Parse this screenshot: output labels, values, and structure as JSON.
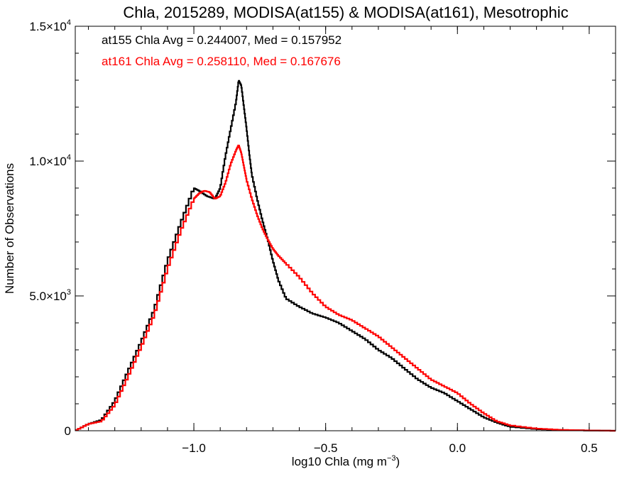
{
  "chart_data": {
    "type": "line",
    "title": "Chla, 2015289, MODISA(at155) & MODISA(at161), Mesotrophic",
    "xlabel": "log10 Chla (mg m",
    "xlabel_sup": "−3",
    "xlabel_tail": ")",
    "ylabel": "Number of Observations",
    "xlim": [
      -1.45,
      0.6
    ],
    "ylim": [
      0,
      15000
    ],
    "x_ticks": [
      {
        "value": -1.0,
        "label": "−1.0"
      },
      {
        "value": -0.5,
        "label": "−0.5"
      },
      {
        "value": 0.0,
        "label": "0.0"
      },
      {
        "value": 0.5,
        "label": "0.5"
      }
    ],
    "y_ticks": [
      {
        "value": 0,
        "label": "0",
        "sup": ""
      },
      {
        "value": 5000,
        "label": "5.0×10",
        "sup": "3"
      },
      {
        "value": 10000,
        "label": "1.0×10",
        "sup": "4"
      },
      {
        "value": 15000,
        "label": "1.5×10",
        "sup": "4"
      }
    ],
    "x_minor_step": 0.1,
    "y_minor_step": 1000,
    "grid": false,
    "annotations": [
      {
        "text": "at155 Chla Avg = 0.244007, Med = 0.157952",
        "color": "#000000"
      },
      {
        "text": "at161 Chla Avg = 0.258110, Med = 0.167676",
        "color": "#ff0000"
      }
    ],
    "series": [
      {
        "color": "#000000",
        "x": [
          -1.45,
          -1.4,
          -1.35,
          -1.3,
          -1.25,
          -1.2,
          -1.15,
          -1.1,
          -1.05,
          -1.0,
          -0.98,
          -0.95,
          -0.92,
          -0.9,
          -0.88,
          -0.86,
          -0.84,
          -0.83,
          -0.82,
          -0.81,
          -0.8,
          -0.79,
          -0.78,
          -0.76,
          -0.74,
          -0.72,
          -0.7,
          -0.68,
          -0.65,
          -0.6,
          -0.55,
          -0.5,
          -0.45,
          -0.4,
          -0.35,
          -0.3,
          -0.25,
          -0.2,
          -0.15,
          -0.1,
          -0.05,
          0.0,
          0.05,
          0.1,
          0.15,
          0.2,
          0.3,
          0.4,
          0.5,
          0.6
        ],
        "y": [
          0,
          250,
          400,
          1100,
          2200,
          3300,
          4500,
          6300,
          7700,
          9000,
          8900,
          8700,
          8600,
          9000,
          10200,
          11200,
          12200,
          13000,
          12800,
          12000,
          11200,
          10300,
          9500,
          8600,
          7800,
          7100,
          6300,
          5600,
          4900,
          4600,
          4350,
          4200,
          4000,
          3700,
          3400,
          3000,
          2700,
          2300,
          1900,
          1600,
          1400,
          1100,
          800,
          500,
          300,
          150,
          60,
          25,
          10,
          0
        ]
      },
      {
        "color": "#ff0000",
        "x": [
          -1.45,
          -1.4,
          -1.35,
          -1.3,
          -1.25,
          -1.2,
          -1.15,
          -1.1,
          -1.05,
          -1.0,
          -0.98,
          -0.96,
          -0.94,
          -0.92,
          -0.9,
          -0.88,
          -0.86,
          -0.84,
          -0.83,
          -0.82,
          -0.81,
          -0.8,
          -0.78,
          -0.76,
          -0.74,
          -0.72,
          -0.7,
          -0.68,
          -0.65,
          -0.6,
          -0.55,
          -0.5,
          -0.45,
          -0.4,
          -0.35,
          -0.3,
          -0.25,
          -0.2,
          -0.15,
          -0.1,
          -0.05,
          0.0,
          0.05,
          0.1,
          0.15,
          0.2,
          0.3,
          0.4,
          0.5,
          0.6
        ],
        "y": [
          0,
          250,
          350,
          950,
          2000,
          3100,
          4300,
          6000,
          7400,
          8600,
          8800,
          8900,
          8850,
          8600,
          8700,
          9200,
          9900,
          10400,
          10600,
          10300,
          9800,
          9300,
          8600,
          8000,
          7500,
          7100,
          6750,
          6500,
          6200,
          5700,
          5100,
          4600,
          4300,
          4100,
          3800,
          3500,
          3100,
          2700,
          2300,
          1900,
          1650,
          1400,
          1000,
          650,
          350,
          200,
          80,
          30,
          10,
          0
        ]
      }
    ]
  }
}
